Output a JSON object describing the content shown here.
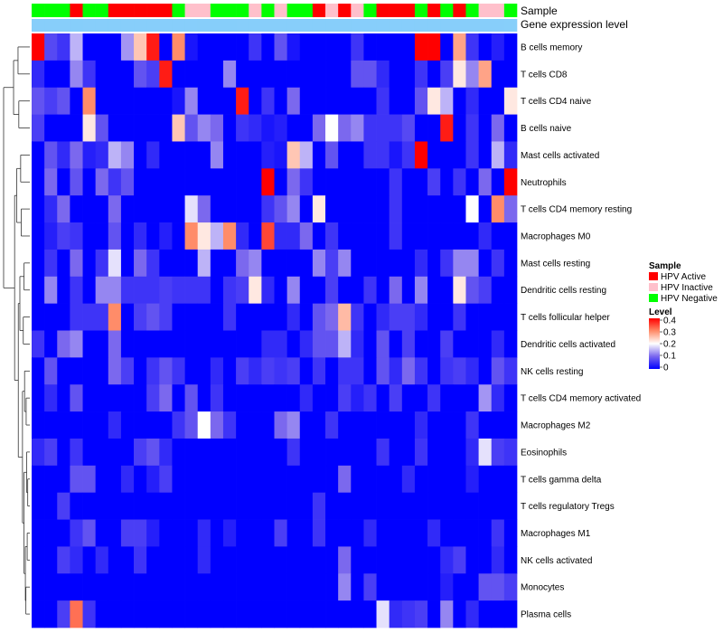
{
  "chart_data": {
    "type": "heatmap",
    "annotation_labels": [
      "Sample",
      "Gene expression level"
    ],
    "sample_colors": {
      "HPV Active": "#ff0000",
      "HPV Inactive": "#ffc0cb",
      "HPV Negative": "#00ff00"
    },
    "expression_bar_color": "#87cefa",
    "samples": [
      "HPV Negative",
      "HPV Negative",
      "HPV Negative",
      "HPV Active",
      "HPV Negative",
      "HPV Negative",
      "HPV Active",
      "HPV Active",
      "HPV Active",
      "HPV Active",
      "HPV Active",
      "HPV Negative",
      "HPV Inactive",
      "HPV Inactive",
      "HPV Negative",
      "HPV Negative",
      "HPV Negative",
      "HPV Inactive",
      "HPV Negative",
      "HPV Inactive",
      "HPV Negative",
      "HPV Negative",
      "HPV Active",
      "HPV Inactive",
      "HPV Active",
      "HPV Inactive",
      "HPV Negative",
      "HPV Active",
      "HPV Active",
      "HPV Active",
      "HPV Negative",
      "HPV Active",
      "HPV Negative",
      "HPV Active",
      "HPV Negative",
      "HPV Inactive",
      "HPV Inactive",
      "HPV Negative"
    ],
    "rows": [
      "B cells memory",
      "T cells CD8",
      "T cells CD4 naive",
      "B cells naive",
      "Mast cells activated",
      "Neutrophils",
      "T cells CD4 memory resting",
      "Macrophages M0",
      "Mast cells resting",
      "Dendritic cells resting",
      "T cells follicular helper",
      "Dendritic cells activated",
      "NK cells resting",
      "T cells CD4 memory activated",
      "Macrophages M2",
      "Eosinophils",
      "T cells gamma delta",
      "T cells regulatory  Tregs",
      "Macrophages M1",
      "NK cells activated",
      "Monocytes",
      "Plasma cells"
    ],
    "values": [
      [
        0.4,
        0.07,
        0.05,
        0.15,
        0,
        0,
        0,
        0.13,
        0.25,
        0.38,
        0,
        0.3,
        0.02,
        0,
        0,
        0,
        0,
        0.05,
        0,
        0.08,
        0.02,
        0,
        0,
        0,
        0,
        0.05,
        0,
        0,
        0,
        0,
        0.4,
        0.4,
        0,
        0.28,
        0.05,
        0,
        0.03,
        0
      ],
      [
        0.04,
        0,
        0,
        0.12,
        0.05,
        0,
        0,
        0,
        0.08,
        0.06,
        0.38,
        0,
        0,
        0,
        0,
        0.12,
        0,
        0,
        0,
        0,
        0,
        0,
        0,
        0,
        0,
        0.08,
        0.08,
        0.04,
        0,
        0,
        0.05,
        0,
        0.06,
        0.22,
        0.12,
        0.28,
        0,
        0
      ],
      [
        0.08,
        0.06,
        0.08,
        0,
        0.3,
        0,
        0,
        0,
        0,
        0,
        0,
        0.02,
        0.12,
        0,
        0,
        0,
        0.38,
        0,
        0.05,
        0,
        0.1,
        0,
        0,
        0,
        0,
        0,
        0,
        0.05,
        0,
        0,
        0.08,
        0.22,
        0.15,
        0,
        0.04,
        0,
        0,
        0.22
      ],
      [
        0.06,
        0,
        0,
        0,
        0.22,
        0.08,
        0,
        0,
        0,
        0,
        0,
        0.25,
        0.08,
        0.12,
        0.1,
        0,
        0.05,
        0.04,
        0.02,
        0.03,
        0,
        0,
        0.1,
        0.2,
        0.1,
        0.12,
        0.05,
        0.05,
        0.05,
        0.07,
        0,
        0,
        0.38,
        0,
        0.05,
        0,
        0.1,
        0
      ],
      [
        0,
        0.08,
        0.04,
        0.1,
        0.03,
        0.04,
        0.15,
        0.12,
        0,
        0.04,
        0,
        0,
        0,
        0,
        0.12,
        0,
        0,
        0,
        0.03,
        0.02,
        0.25,
        0.15,
        0,
        0.08,
        0,
        0,
        0.05,
        0.05,
        0.02,
        0.05,
        0.4,
        0,
        0,
        0,
        0.05,
        0,
        0.15,
        0.04
      ],
      [
        0,
        0.1,
        0,
        0.08,
        0,
        0.1,
        0.05,
        0.08,
        0,
        0,
        0,
        0,
        0,
        0,
        0,
        0,
        0,
        0,
        0.42,
        0,
        0.1,
        0.05,
        0,
        0,
        0,
        0,
        0,
        0,
        0.05,
        0,
        0,
        0.06,
        0,
        0.05,
        0,
        0.1,
        0,
        0.4
      ],
      [
        0,
        0.04,
        0.1,
        0,
        0,
        0,
        0.1,
        0,
        0,
        0,
        0,
        0,
        0.18,
        0.1,
        0,
        0,
        0,
        0,
        0.05,
        0.08,
        0.12,
        0,
        0.22,
        0,
        0,
        0,
        0,
        0,
        0.05,
        0,
        0,
        0,
        0,
        0,
        0.2,
        0,
        0.3,
        0.1
      ],
      [
        0,
        0.03,
        0.06,
        0.05,
        0,
        0,
        0.08,
        0,
        0.04,
        0,
        0.03,
        0,
        0.3,
        0.22,
        0.15,
        0.3,
        0.04,
        0,
        0.35,
        0.04,
        0.04,
        0.1,
        0,
        0.05,
        0,
        0,
        0,
        0,
        0.05,
        0,
        0,
        0,
        0,
        0,
        0,
        0.04,
        0,
        0
      ],
      [
        0,
        0.05,
        0,
        0.1,
        0,
        0.05,
        0.18,
        0,
        0.1,
        0.05,
        0,
        0,
        0,
        0.15,
        0,
        0,
        0.1,
        0.12,
        0,
        0,
        0,
        0,
        0.12,
        0.06,
        0.12,
        0,
        0,
        0,
        0,
        0,
        0.04,
        0,
        0.05,
        0.12,
        0.12,
        0,
        0.05,
        0
      ],
      [
        0,
        0.12,
        0,
        0.05,
        0,
        0.12,
        0.12,
        0.05,
        0.05,
        0.05,
        0.06,
        0.05,
        0.05,
        0.05,
        0,
        0.05,
        0.06,
        0.22,
        0.04,
        0,
        0.12,
        0,
        0,
        0.06,
        0,
        0,
        0.05,
        0,
        0.1,
        0,
        0.12,
        0,
        0,
        0.22,
        0.08,
        0.06,
        0,
        0
      ],
      [
        0,
        0,
        0,
        0.05,
        0.05,
        0.05,
        0.3,
        0,
        0.06,
        0.08,
        0.06,
        0,
        0,
        0,
        0,
        0.05,
        0,
        0,
        0,
        0,
        0.04,
        0,
        0.08,
        0.1,
        0.26,
        0.05,
        0,
        0.04,
        0.06,
        0.06,
        0.04,
        0,
        0,
        0.05,
        0,
        0,
        0,
        0
      ],
      [
        0.05,
        0,
        0.1,
        0.12,
        0,
        0,
        0.1,
        0,
        0,
        0,
        0,
        0,
        0,
        0,
        0,
        0,
        0,
        0,
        0.04,
        0.04,
        0,
        0.04,
        0.08,
        0.08,
        0.15,
        0.04,
        0,
        0.08,
        0,
        0.06,
        0,
        0,
        0.06,
        0,
        0,
        0,
        0.04,
        0
      ],
      [
        0,
        0.08,
        0,
        0,
        0,
        0,
        0.1,
        0.06,
        0,
        0.05,
        0.08,
        0.05,
        0,
        0,
        0.04,
        0,
        0.06,
        0.04,
        0.06,
        0.05,
        0.06,
        0,
        0.05,
        0,
        0.05,
        0.05,
        0,
        0.08,
        0.04,
        0.1,
        0.05,
        0,
        0.05,
        0.06,
        0.04,
        0,
        0.08,
        0.05
      ],
      [
        0,
        0.04,
        0,
        0.08,
        0,
        0,
        0,
        0,
        0,
        0.06,
        0.1,
        0,
        0.08,
        0,
        0.05,
        0,
        0,
        0,
        0,
        0,
        0,
        0.04,
        0,
        0,
        0.06,
        0.03,
        0.05,
        0,
        0.06,
        0,
        0,
        0.05,
        0,
        0,
        0,
        0.13,
        0.04,
        0
      ],
      [
        0,
        0,
        0,
        0,
        0,
        0,
        0.04,
        0,
        0,
        0,
        0,
        0.05,
        0.08,
        0.2,
        0.1,
        0.05,
        0,
        0,
        0,
        0.1,
        0.12,
        0,
        0,
        0.05,
        0,
        0,
        0,
        0,
        0,
        0,
        0.04,
        0,
        0,
        0,
        0.05,
        0,
        0,
        0
      ],
      [
        0.04,
        0.06,
        0,
        0.05,
        0,
        0,
        0,
        0,
        0.06,
        0.08,
        0.04,
        0,
        0,
        0,
        0,
        0,
        0,
        0,
        0,
        0,
        0.05,
        0,
        0,
        0,
        0,
        0,
        0,
        0.05,
        0,
        0,
        0.05,
        0,
        0,
        0,
        0.04,
        0.18,
        0.06,
        0.05
      ],
      [
        0,
        0,
        0,
        0.08,
        0.08,
        0,
        0,
        0.04,
        0,
        0.03,
        0.06,
        0,
        0,
        0,
        0,
        0,
        0,
        0,
        0,
        0,
        0,
        0,
        0,
        0,
        0.1,
        0,
        0,
        0,
        0,
        0.04,
        0,
        0,
        0,
        0,
        0.03,
        0,
        0,
        0
      ],
      [
        0,
        0,
        0.06,
        0,
        0,
        0,
        0,
        0,
        0,
        0,
        0,
        0,
        0,
        0,
        0,
        0,
        0,
        0,
        0,
        0,
        0,
        0,
        0.05,
        0,
        0,
        0,
        0,
        0,
        0,
        0,
        0,
        0,
        0,
        0,
        0,
        0,
        0,
        0
      ],
      [
        0,
        0,
        0,
        0.05,
        0.08,
        0,
        0,
        0.06,
        0.06,
        0.03,
        0,
        0,
        0,
        0.04,
        0,
        0.03,
        0,
        0,
        0,
        0.06,
        0,
        0,
        0.05,
        0,
        0,
        0,
        0.04,
        0,
        0,
        0,
        0,
        0.04,
        0,
        0,
        0,
        0,
        0.05,
        0
      ],
      [
        0,
        0,
        0.06,
        0.04,
        0,
        0.04,
        0,
        0,
        0.05,
        0,
        0,
        0,
        0,
        0.04,
        0,
        0,
        0,
        0,
        0,
        0,
        0,
        0,
        0,
        0,
        0.1,
        0,
        0,
        0,
        0,
        0,
        0,
        0,
        0.04,
        0.06,
        0,
        0,
        0.04,
        0
      ],
      [
        0,
        0,
        0,
        0,
        0,
        0,
        0,
        0,
        0,
        0,
        0,
        0,
        0,
        0,
        0,
        0,
        0,
        0,
        0,
        0,
        0,
        0,
        0,
        0,
        0.12,
        0,
        0.06,
        0,
        0,
        0,
        0,
        0,
        0.03,
        0,
        0,
        0.08,
        0.08,
        0.06
      ],
      [
        0,
        0,
        0.06,
        0.32,
        0.05,
        0,
        0,
        0,
        0,
        0,
        0,
        0,
        0,
        0,
        0,
        0,
        0,
        0,
        0,
        0,
        0,
        0,
        0,
        0,
        0,
        0,
        0,
        0.18,
        0.04,
        0.05,
        0.06,
        0,
        0.12,
        0,
        0.04,
        0,
        0,
        0
      ]
    ],
    "legend": {
      "sample_title": "Sample",
      "sample_entries": [
        "HPV Active",
        "HPV Inactive",
        "HPV Negative"
      ],
      "level_title": "Level",
      "level_ticks": [
        "0.4",
        "0.3",
        "0.2",
        "0.1",
        "0"
      ],
      "level_range": [
        0,
        0.4
      ]
    },
    "dendrogram": {
      "type": "row-clustering",
      "position": "left"
    }
  }
}
